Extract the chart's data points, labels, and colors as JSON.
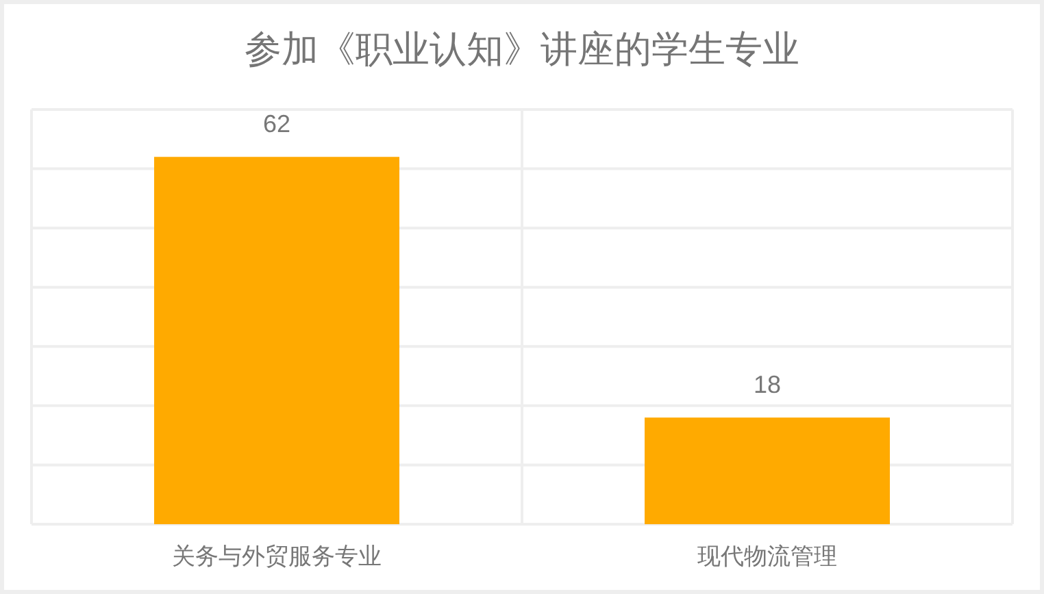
{
  "chart_data": {
    "type": "bar",
    "title": "参加《职业认知》讲座的学生专业",
    "categories": [
      "关务与外贸服务专业",
      "现代物流管理"
    ],
    "values": [
      62,
      18
    ],
    "color": "#ffaa00",
    "ylim": [
      0,
      70
    ],
    "yticks": [
      {
        "value": 0,
        "label": null
      },
      {
        "value": 10,
        "label": null
      },
      {
        "value": 20,
        "label": null
      },
      {
        "value": 30,
        "label": null
      },
      {
        "value": 40,
        "label": null
      },
      {
        "value": 50,
        "label": null
      },
      {
        "value": 60,
        "label": null
      },
      {
        "value": 70,
        "label": null
      }
    ],
    "tick_labels": "x",
    "grid": true,
    "data_labels": true
  }
}
